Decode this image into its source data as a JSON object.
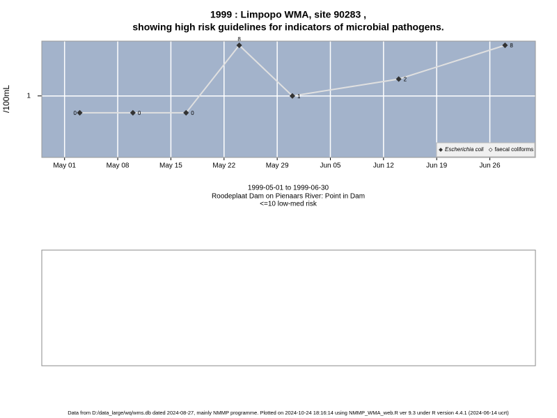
{
  "chart_data": {
    "type": "line",
    "title": "1999 : Limpopo WMA, site 90283 ,",
    "subtitle": "showing high risk guidelines for indicators of microbial pathogens.",
    "y_label": "/100mL",
    "x": [
      "1999-05-03",
      "1999-05-10",
      "1999-05-17",
      "1999-05-24",
      "1999-05-31",
      "1999-06-14",
      "1999-06-28"
    ],
    "series": [
      {
        "name": "Escherichia coli",
        "color": "#333333",
        "line_color": "#e0e0e0",
        "values": [
          0.5,
          0.5,
          0.5,
          8,
          1,
          2,
          8
        ],
        "value_labels": [
          "0",
          "0",
          "0",
          "8",
          "1",
          "2",
          "8"
        ]
      },
      {
        "name": "faecal coliforms",
        "color": "#ffffff",
        "line_color": "#e0e0e0",
        "values": [
          null,
          null,
          null,
          null,
          null,
          null,
          null
        ]
      }
    ],
    "log_y": true,
    "ylim": [
      0.08,
      9.5
    ],
    "yticks": [
      1
    ],
    "xlim": [
      "1999-04-28",
      "1999-07-02"
    ],
    "xticks": [
      {
        "value": "1999-05-01",
        "label": "May 01"
      },
      {
        "value": "1999-05-08",
        "label": "May 08"
      },
      {
        "value": "1999-05-15",
        "label": "May 15"
      },
      {
        "value": "1999-05-22",
        "label": "May 22"
      },
      {
        "value": "1999-05-29",
        "label": "May 29"
      },
      {
        "value": "1999-06-05",
        "label": "Jun 05"
      },
      {
        "value": "1999-06-12",
        "label": "Jun 12"
      },
      {
        "value": "1999-06-19",
        "label": "Jun 19"
      },
      {
        "value": "1999-06-26",
        "label": "Jun 26"
      }
    ],
    "grid": true,
    "background": "#a3b3cb",
    "legend_position": "bottom-right",
    "captions": [
      "1999-05-01 to 1999-06-30",
      "Roodeplaat Dam on Pienaars River: Point in Dam",
      "<=10 low-med risk"
    ],
    "footer": "Data from D:/data_large/wq/wms.db dated 2024-08-27, mainly NMMP programme. Plotted on 2024-10-24 18:16:14 using NMMP_WMA_web.R ver 9.3 under R version 4.4.1 (2024-06-14 ucrt)"
  }
}
